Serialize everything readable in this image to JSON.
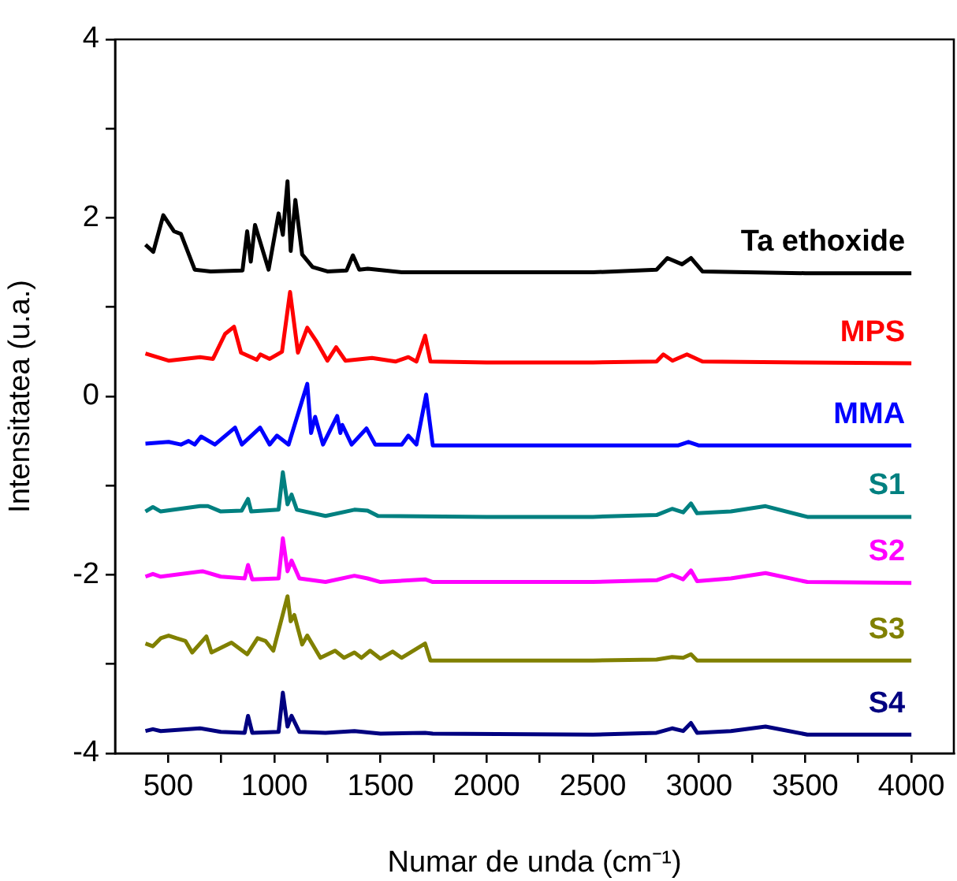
{
  "chart_data": {
    "type": "line",
    "xlabel": "Numar de unda (cm⁻¹)",
    "ylabel": "Intensitatea (u.a.)",
    "xlim": [
      250,
      4200
    ],
    "xticks": [
      500,
      {
        "value": 750,
        "label": null
      },
      1000,
      {
        "value": 1250,
        "label": null
      },
      1500,
      {
        "value": 1750,
        "label": null
      },
      2000,
      {
        "value": 2250,
        "label": null
      },
      2500,
      {
        "value": 2750,
        "label": null
      },
      3000,
      {
        "value": 3250,
        "label": null
      },
      3500,
      {
        "value": 3750,
        "label": null
      },
      4000
    ],
    "ylim": [
      -4,
      4
    ],
    "yticks": [
      -4,
      {
        "value": -3,
        "label": null
      },
      -2,
      {
        "value": -1,
        "label": null
      },
      0,
      {
        "value": 1,
        "label": null
      },
      2,
      {
        "value": 3,
        "label": null
      },
      4
    ],
    "grid": false,
    "legend": false,
    "marker": "none",
    "line_style": "solid",
    "series": [
      {
        "name": "Ta ethoxide",
        "color": "#000000",
        "x": [
          393,
          430,
          477,
          527,
          560,
          625,
          700,
          850,
          872,
          889,
          909,
          973,
          1020,
          1040,
          1062,
          1077,
          1099,
          1131,
          1180,
          1250,
          1340,
          1370,
          1400,
          1440,
          1600,
          2000,
          2500,
          2800,
          2851,
          2920,
          2962,
          3016,
          3500,
          4000
        ],
        "values": [
          1.7,
          1.62,
          2.03,
          1.85,
          1.82,
          1.42,
          1.4,
          1.41,
          1.85,
          1.51,
          1.92,
          1.42,
          2.05,
          1.81,
          2.41,
          1.63,
          2.2,
          1.59,
          1.45,
          1.4,
          1.41,
          1.58,
          1.42,
          1.43,
          1.39,
          1.39,
          1.39,
          1.42,
          1.55,
          1.48,
          1.55,
          1.4,
          1.38,
          1.38
        ]
      },
      {
        "name": "MPS",
        "color": "#ff0000",
        "x": [
          393,
          502,
          650,
          711,
          768,
          810,
          843,
          917,
          934,
          978,
          1036,
          1074,
          1111,
          1155,
          1200,
          1250,
          1291,
          1335,
          1460,
          1570,
          1631,
          1669,
          1710,
          1735,
          2000,
          2500,
          2800,
          2832,
          2875,
          2943,
          3016,
          3500,
          4000
        ],
        "values": [
          0.48,
          0.4,
          0.44,
          0.42,
          0.7,
          0.78,
          0.49,
          0.41,
          0.47,
          0.42,
          0.5,
          1.17,
          0.49,
          0.77,
          0.61,
          0.4,
          0.55,
          0.4,
          0.43,
          0.39,
          0.44,
          0.39,
          0.68,
          0.39,
          0.38,
          0.38,
          0.39,
          0.47,
          0.4,
          0.47,
          0.39,
          0.38,
          0.37
        ]
      },
      {
        "name": "MMA",
        "color": "#0000ff",
        "x": [
          393,
          502,
          560,
          596,
          625,
          655,
          720,
          815,
          847,
          933,
          978,
          1012,
          1067,
          1155,
          1173,
          1192,
          1229,
          1296,
          1311,
          1320,
          1364,
          1434,
          1475,
          1600,
          1631,
          1669,
          1715,
          1746,
          2000,
          2500,
          2900,
          2950,
          3000,
          3500,
          4000
        ],
        "values": [
          -0.53,
          -0.51,
          -0.54,
          -0.5,
          -0.54,
          -0.45,
          -0.54,
          -0.35,
          -0.54,
          -0.35,
          -0.54,
          -0.44,
          -0.54,
          0.14,
          -0.41,
          -0.23,
          -0.54,
          -0.22,
          -0.41,
          -0.32,
          -0.54,
          -0.36,
          -0.54,
          -0.54,
          -0.44,
          -0.54,
          0.02,
          -0.55,
          -0.55,
          -0.55,
          -0.55,
          -0.51,
          -0.55,
          -0.55,
          -0.55
        ]
      },
      {
        "name": "S1",
        "color": "#008080",
        "x": [
          393,
          428,
          465,
          650,
          687,
          748,
          846,
          876,
          891,
          1020,
          1040,
          1062,
          1081,
          1106,
          1241,
          1377,
          1439,
          1488,
          2000,
          2500,
          2800,
          2873,
          2925,
          2962,
          2991,
          3150,
          3313,
          3510,
          4000
        ],
        "values": [
          -1.29,
          -1.24,
          -1.29,
          -1.23,
          -1.23,
          -1.29,
          -1.28,
          -1.15,
          -1.29,
          -1.27,
          -0.85,
          -1.21,
          -1.1,
          -1.27,
          -1.34,
          -1.27,
          -1.28,
          -1.34,
          -1.35,
          -1.35,
          -1.33,
          -1.26,
          -1.3,
          -1.2,
          -1.31,
          -1.29,
          -1.23,
          -1.35,
          -1.35
        ]
      },
      {
        "name": "S2",
        "color": "#ff00ff",
        "x": [
          393,
          428,
          465,
          662,
          748,
          860,
          876,
          896,
          1020,
          1040,
          1062,
          1081,
          1118,
          1241,
          1377,
          1439,
          1500,
          1710,
          1746,
          2500,
          2800,
          2873,
          2925,
          2962,
          2991,
          3150,
          3313,
          3510,
          4000
        ],
        "values": [
          -2.02,
          -1.99,
          -2.02,
          -1.96,
          -2.02,
          -2.04,
          -1.89,
          -2.05,
          -2.04,
          -1.59,
          -1.96,
          -1.84,
          -2.04,
          -2.08,
          -2.01,
          -2.04,
          -2.08,
          -2.05,
          -2.08,
          -2.08,
          -2.06,
          -2.0,
          -2.05,
          -1.95,
          -2.07,
          -2.04,
          -1.98,
          -2.08,
          -2.09
        ]
      },
      {
        "name": "S3",
        "color": "#808000",
        "x": [
          393,
          428,
          465,
          502,
          539,
          581,
          613,
          680,
          704,
          798,
          872,
          921,
          958,
          995,
          1062,
          1077,
          1094,
          1131,
          1155,
          1217,
          1286,
          1328,
          1377,
          1410,
          1451,
          1500,
          1557,
          1599,
          1710,
          1735,
          2500,
          2800,
          2873,
          2925,
          2962,
          2991,
          4000
        ],
        "values": [
          -2.77,
          -2.8,
          -2.71,
          -2.68,
          -2.71,
          -2.74,
          -2.87,
          -2.69,
          -2.87,
          -2.76,
          -2.89,
          -2.71,
          -2.74,
          -2.85,
          -2.24,
          -2.52,
          -2.45,
          -2.78,
          -2.68,
          -2.93,
          -2.85,
          -2.93,
          -2.87,
          -2.93,
          -2.85,
          -2.94,
          -2.86,
          -2.93,
          -2.77,
          -2.96,
          -2.96,
          -2.95,
          -2.92,
          -2.93,
          -2.89,
          -2.96,
          -2.96
        ]
      },
      {
        "name": "S4",
        "color": "#000080",
        "x": [
          393,
          428,
          465,
          650,
          748,
          860,
          876,
          896,
          1020,
          1040,
          1062,
          1081,
          1118,
          1241,
          1377,
          1500,
          1710,
          1746,
          2500,
          2800,
          2873,
          2925,
          2962,
          2991,
          3150,
          3313,
          3510,
          4000
        ],
        "values": [
          -3.75,
          -3.73,
          -3.75,
          -3.72,
          -3.76,
          -3.77,
          -3.58,
          -3.77,
          -3.76,
          -3.32,
          -3.7,
          -3.58,
          -3.76,
          -3.77,
          -3.75,
          -3.78,
          -3.77,
          -3.78,
          -3.79,
          -3.77,
          -3.72,
          -3.75,
          -3.66,
          -3.77,
          -3.75,
          -3.7,
          -3.79,
          -3.79
        ]
      }
    ]
  }
}
